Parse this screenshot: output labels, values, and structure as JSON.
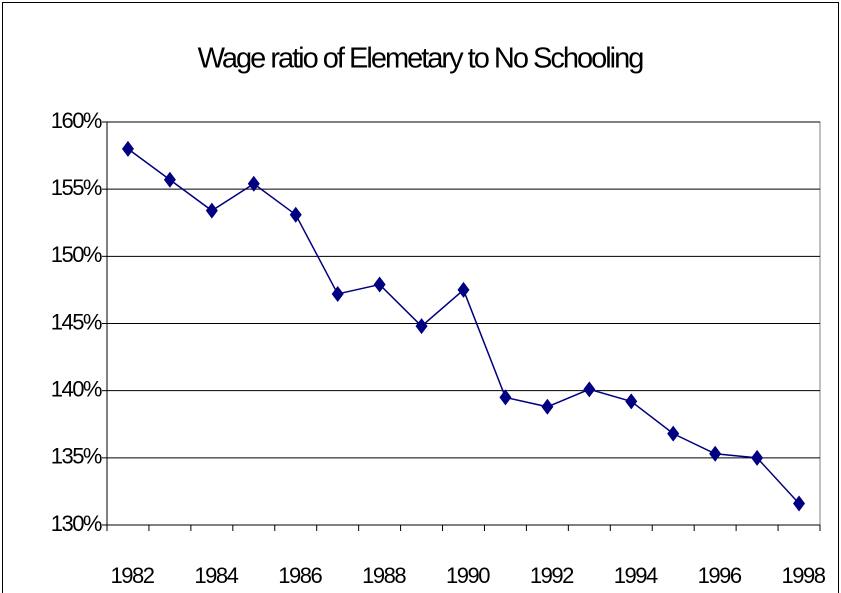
{
  "chart_data": {
    "type": "line",
    "title": "Wage ratio of Elemetary to No Schooling",
    "categories": [
      "1982",
      null,
      "1984",
      null,
      "1986",
      null,
      "1988",
      null,
      "1990",
      null,
      "1992",
      null,
      "1994",
      null,
      "1996",
      null,
      "1998"
    ],
    "series": [
      {
        "color": "#000080",
        "values": [
          158.0,
          155.7,
          153.4,
          155.4,
          153.1,
          147.2,
          147.9,
          144.8,
          147.5,
          139.5,
          138.8,
          140.1,
          139.2,
          136.8,
          135.3,
          135.0,
          131.6
        ]
      }
    ],
    "ylim": [
      130,
      160
    ],
    "yticks": [
      {
        "value": 130,
        "label": "130%"
      },
      {
        "value": 135,
        "label": "135%"
      },
      {
        "value": 140,
        "label": "140%"
      },
      {
        "value": 145,
        "label": "145%"
      },
      {
        "value": 150,
        "label": "150%"
      },
      {
        "value": 155,
        "label": "155%"
      },
      {
        "value": 160,
        "label": "160%"
      }
    ],
    "grid": true
  }
}
